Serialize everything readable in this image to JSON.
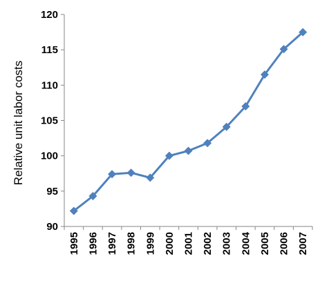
{
  "chart_data": {
    "type": "line",
    "ylabel": "Relative unit labor costs",
    "xlabel": "",
    "ylim": [
      90,
      120
    ],
    "yticks": [
      90,
      95,
      100,
      105,
      110,
      115,
      120
    ],
    "grid": false,
    "categories": [
      "1995",
      "1996",
      "1997",
      "1998",
      "1999",
      "2000",
      "2001",
      "2002",
      "2003",
      "2004",
      "2005",
      "2006",
      "2007"
    ],
    "series": [
      {
        "values": [
          92.2,
          94.3,
          97.4,
          97.6,
          96.9,
          100.0,
          100.7,
          101.8,
          104.1,
          107.0,
          111.5,
          115.1,
          117.5
        ],
        "color": "#4f81bd",
        "marker": "diamond"
      }
    ]
  }
}
